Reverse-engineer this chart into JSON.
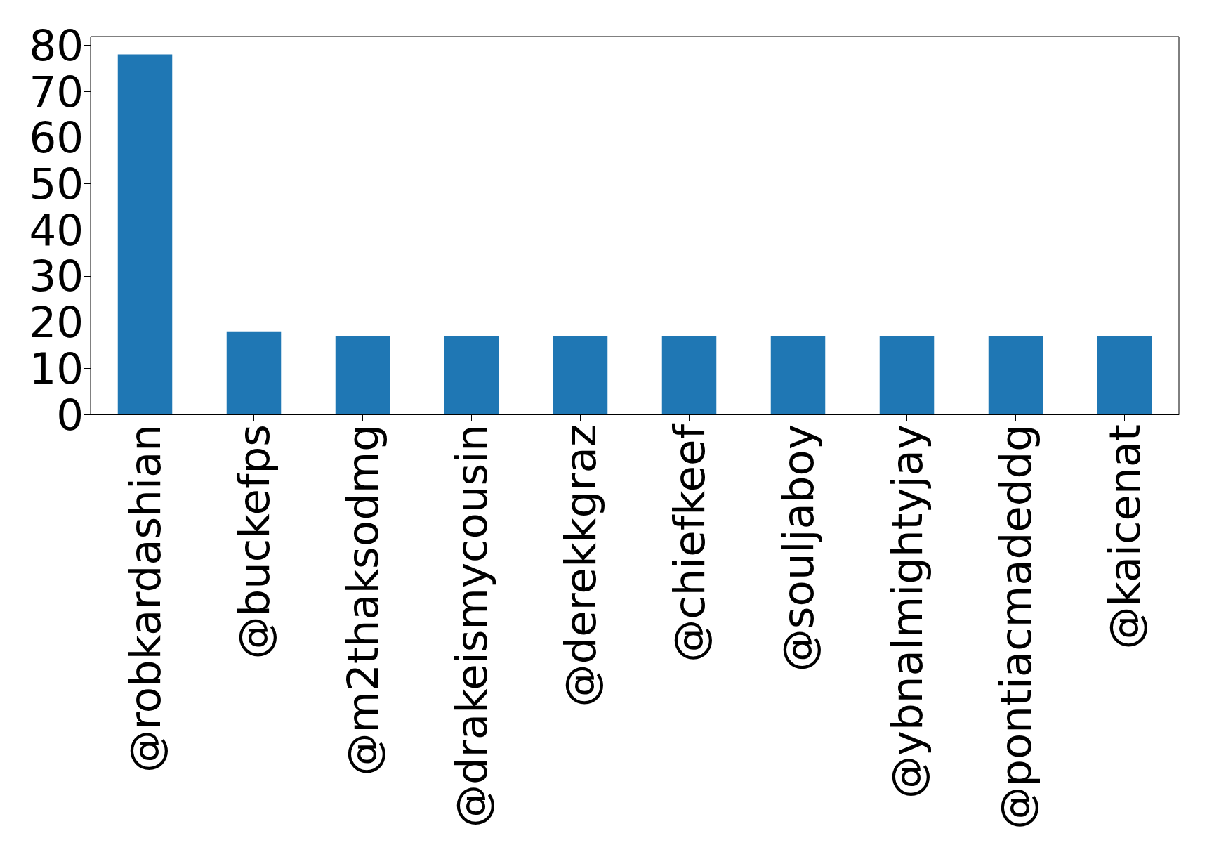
{
  "chart_data": {
    "type": "bar",
    "categories": [
      "@robkardashian",
      "@buckefps",
      "@m2thaksodmg",
      "@drakeismycousin",
      "@derekkgraz",
      "@chiefkeef",
      "@souljaboy",
      "@ybnalmightyjay",
      "@pontiacmadeddg",
      "@kaicenat"
    ],
    "values": [
      78,
      18,
      17,
      17,
      17,
      17,
      17,
      17,
      17,
      17
    ],
    "color": "#1f77b4",
    "ylim": [
      0,
      81.9
    ],
    "yticks": [
      0,
      10,
      20,
      30,
      40,
      50,
      60,
      70,
      80
    ],
    "grid": false
  }
}
